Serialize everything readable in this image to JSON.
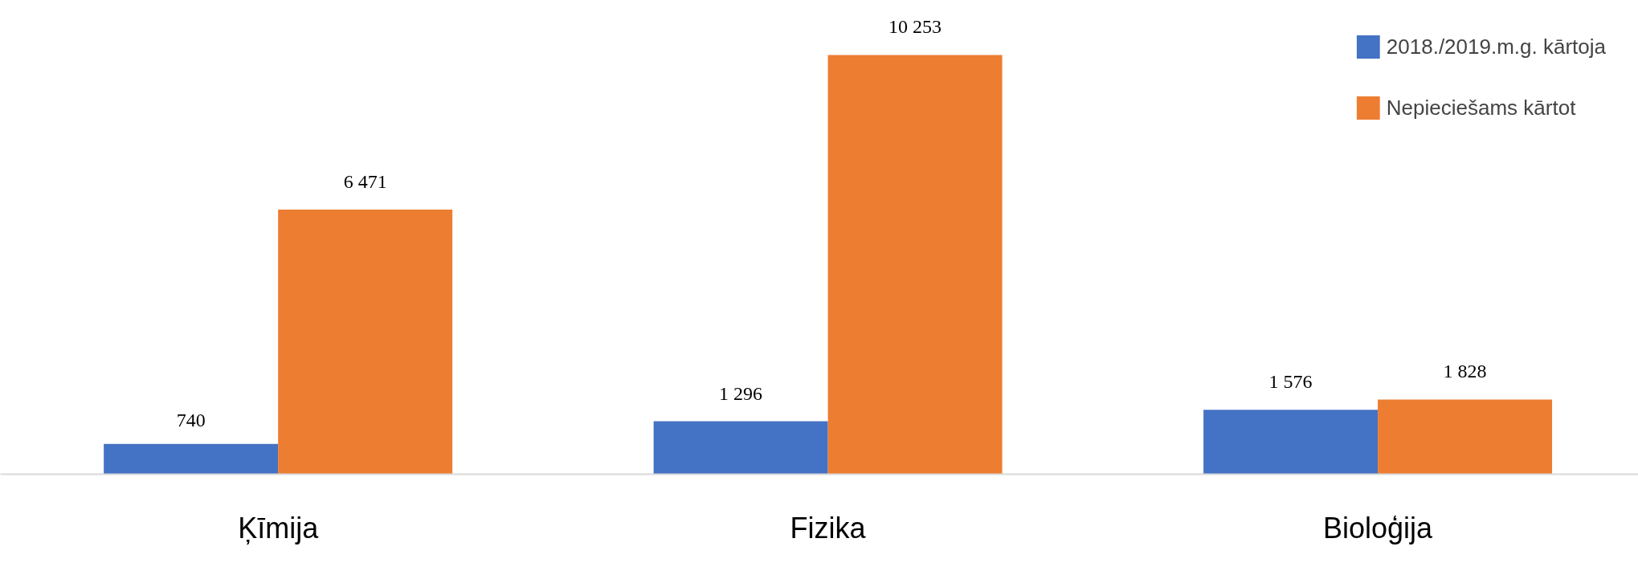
{
  "chart_data": {
    "type": "bar",
    "categories": [
      "Ķīmija",
      "Fizika",
      "Bioloģija"
    ],
    "series": [
      {
        "name": "2018./2019.m.g. kārtoja",
        "color": "#4472c4",
        "values": [
          740,
          1296,
          1576
        ],
        "value_labels": [
          "740",
          "1 296",
          "1 576"
        ]
      },
      {
        "name": "Nepieciešams kārtot",
        "color": "#ed7d31",
        "values": [
          6471,
          10253,
          1828
        ],
        "value_labels": [
          "6 471",
          "10 253",
          "1 828"
        ]
      }
    ],
    "legend": "top right",
    "grid": false
  }
}
